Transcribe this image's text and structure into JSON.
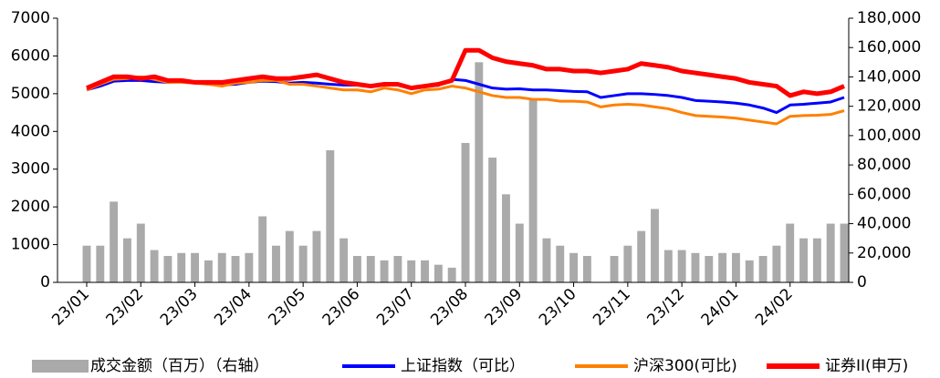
{
  "chart_data": {
    "type": "combo",
    "categories": [
      "23/01",
      null,
      null,
      null,
      "23/02",
      null,
      null,
      null,
      "23/03",
      null,
      null,
      null,
      "23/04",
      null,
      null,
      null,
      "23/05",
      null,
      null,
      null,
      "23/06",
      null,
      null,
      null,
      "23/07",
      null,
      null,
      null,
      "23/08",
      null,
      null,
      null,
      "23/09",
      null,
      null,
      null,
      "23/10",
      null,
      null,
      null,
      "23/11",
      null,
      null,
      null,
      "23/12",
      null,
      null,
      null,
      "24/01",
      null,
      null,
      null,
      "24/02",
      null,
      null,
      null,
      null
    ],
    "ylim": [
      0,
      7000
    ],
    "yticks": [
      0,
      1000,
      2000,
      3000,
      4000,
      5000,
      6000,
      7000
    ],
    "y2lim": [
      0,
      180000
    ],
    "y2ticks": [
      0,
      {
        "value": 20000,
        "label": "20,000"
      },
      {
        "value": 40000,
        "label": "40,000"
      },
      {
        "value": 60000,
        "label": "60,000"
      },
      {
        "value": 80000,
        "label": "80,000"
      },
      {
        "value": 100000,
        "label": "100,000"
      },
      {
        "value": 120000,
        "label": "120,000"
      },
      {
        "value": 140000,
        "label": "140,000"
      },
      {
        "value": 160000,
        "label": "160,000"
      },
      {
        "value": 180000,
        "label": "180,000"
      }
    ],
    "legend": "bottom",
    "series": [
      {
        "name": "成交金额（百万）（右轴）",
        "type": "bar",
        "axis": "y2",
        "color": "#aaaaaa",
        "values": [
          25000,
          25000,
          55000,
          30000,
          40000,
          22000,
          18000,
          20000,
          20000,
          15000,
          20000,
          18000,
          20000,
          45000,
          25000,
          35000,
          25000,
          35000,
          90000,
          30000,
          18000,
          18000,
          15000,
          18000,
          15000,
          15000,
          12000,
          10000,
          95000,
          150000,
          85000,
          60000,
          40000,
          125000,
          30000,
          25000,
          20000,
          18000,
          0,
          18000,
          25000,
          35000,
          50000,
          22000,
          22000,
          20000,
          18000,
          20000,
          20000,
          15000,
          18000,
          25000,
          40000,
          30000,
          30000,
          40000,
          40000
        ]
      },
      {
        "name": "上证指数（可比）",
        "type": "line",
        "color": "#0000ff",
        "values": [
          5100,
          5200,
          5330,
          5350,
          5350,
          5320,
          5300,
          5330,
          5300,
          5250,
          5230,
          5250,
          5300,
          5330,
          5320,
          5280,
          5300,
          5280,
          5250,
          5230,
          5230,
          5220,
          5250,
          5230,
          5150,
          5200,
          5220,
          5380,
          5350,
          5250,
          5150,
          5120,
          5130,
          5100,
          5100,
          5080,
          5060,
          5050,
          4900,
          4950,
          5000,
          5000,
          4980,
          4950,
          4900,
          4820,
          4800,
          4780,
          4750,
          4700,
          4620,
          4500,
          4700,
          4720,
          4750,
          4780,
          4900
        ]
      },
      {
        "name": "沪深300(可比)",
        "type": "line",
        "color": "#ff8000",
        "values": [
          5100,
          5250,
          5380,
          5400,
          5450,
          5380,
          5300,
          5300,
          5280,
          5250,
          5200,
          5280,
          5300,
          5350,
          5350,
          5250,
          5250,
          5200,
          5150,
          5100,
          5100,
          5050,
          5150,
          5100,
          5000,
          5100,
          5120,
          5200,
          5150,
          5050,
          4950,
          4900,
          4900,
          4850,
          4850,
          4800,
          4800,
          4780,
          4650,
          4700,
          4720,
          4700,
          4650,
          4600,
          4500,
          4420,
          4400,
          4380,
          4350,
          4300,
          4250,
          4200,
          4400,
          4420,
          4430,
          4450,
          4550
        ]
      },
      {
        "name": "证券II(申万)",
        "type": "line",
        "color": "#ff0000",
        "values": [
          5150,
          5300,
          5450,
          5450,
          5400,
          5450,
          5350,
          5350,
          5300,
          5300,
          5300,
          5350,
          5400,
          5450,
          5400,
          5400,
          5450,
          5500,
          5400,
          5300,
          5250,
          5200,
          5250,
          5250,
          5150,
          5200,
          5250,
          5350,
          6150,
          6150,
          5950,
          5850,
          5800,
          5750,
          5650,
          5650,
          5600,
          5600,
          5550,
          5600,
          5650,
          5800,
          5750,
          5700,
          5600,
          5550,
          5500,
          5450,
          5400,
          5300,
          5250,
          5200,
          4950,
          5050,
          5000,
          5050,
          5200
        ]
      }
    ]
  }
}
